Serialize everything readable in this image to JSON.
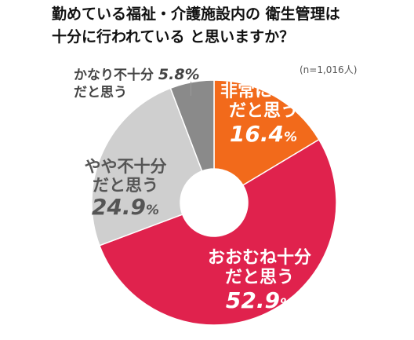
{
  "title_line1": "勤めている福祉・介護施設内の 衛生管理は",
  "title_line2": "十分に行われている と思いますか？",
  "note": "(n=1,016人)",
  "chart_data": {
    "type": "pie",
    "variant": "donut",
    "total_n": 1016,
    "slices": [
      {
        "label_line1": "非常に十分",
        "label_line2": "だと思う",
        "value": 16.4,
        "value_text": "16.4",
        "color": "#f26a1b"
      },
      {
        "label_line1": "おおむね十分",
        "label_line2": "だと思う",
        "value": 52.9,
        "value_text": "52.9",
        "color": "#e0224d"
      },
      {
        "label_line1": "やや不十分",
        "label_line2": "だと思う",
        "value": 24.9,
        "value_text": "24.9",
        "color": "#cfcfcf"
      },
      {
        "label_line1": "かなり不十分",
        "label_line2": "だと思う",
        "value": 5.8,
        "value_text": "5.8",
        "color": "#8a8a8a"
      }
    ],
    "unit": "%",
    "start_angle": "12 o'clock",
    "direction": "clockwise"
  }
}
